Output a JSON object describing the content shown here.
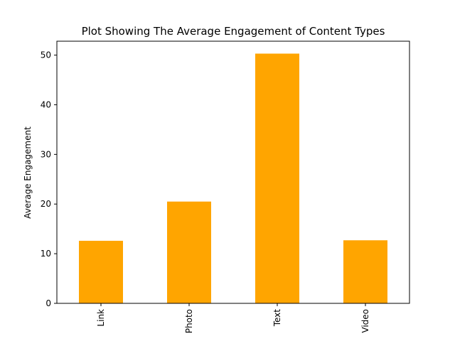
{
  "chart_data": {
    "type": "bar",
    "title": "Plot Showing The Average Engagement of Content Types",
    "xlabel": "",
    "ylabel": "Average Engagement",
    "categories": [
      "Link",
      "Photo",
      "Text",
      "Video"
    ],
    "values": [
      12.6,
      20.5,
      50.3,
      12.7
    ],
    "ylim": [
      0,
      52.8
    ],
    "yticks": [
      0,
      10,
      20,
      30,
      40,
      50
    ],
    "bar_color": "#ffa500",
    "grid": false,
    "legend": "none",
    "tick_label_rotation": "vertical"
  }
}
